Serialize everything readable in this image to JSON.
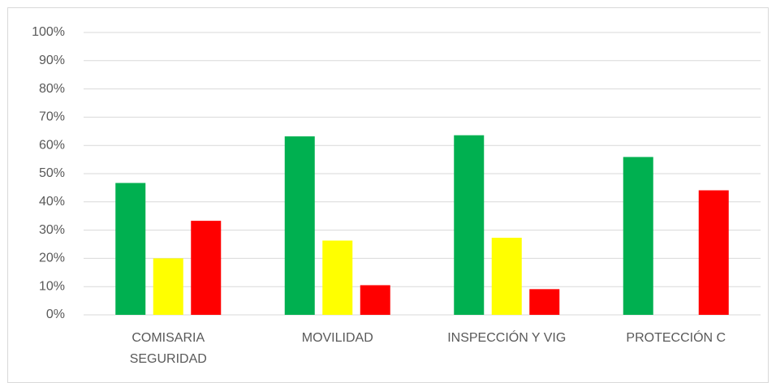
{
  "chart_data": {
    "type": "bar",
    "categories": [
      "COMISARIA SEGURIDAD",
      "MOVILIDAD",
      "INSPECCIÓN Y VIG",
      "PROTECCIÓN C"
    ],
    "series": [
      {
        "color": "#00b050",
        "values": [
          46.7,
          63.2,
          63.6,
          55.9
        ]
      },
      {
        "color": "#ffff00",
        "values": [
          20,
          26.3,
          27.3,
          0
        ]
      },
      {
        "color": "#ff0000",
        "values": [
          33.3,
          10.5,
          9.1,
          44.1
        ]
      }
    ],
    "ylim": [
      0,
      100
    ],
    "yticks": [
      {
        "value": 0,
        "label": "0%"
      },
      {
        "value": 10,
        "label": "10%"
      },
      {
        "value": 20,
        "label": "20%"
      },
      {
        "value": 30,
        "label": "30%"
      },
      {
        "value": 40,
        "label": "40%"
      },
      {
        "value": 50,
        "label": "50%"
      },
      {
        "value": 60,
        "label": "60%"
      },
      {
        "value": 70,
        "label": "70%"
      },
      {
        "value": 80,
        "label": "80%"
      },
      {
        "value": 90,
        "label": "90%"
      },
      {
        "value": 100,
        "label": "100%"
      }
    ],
    "grid": true
  }
}
